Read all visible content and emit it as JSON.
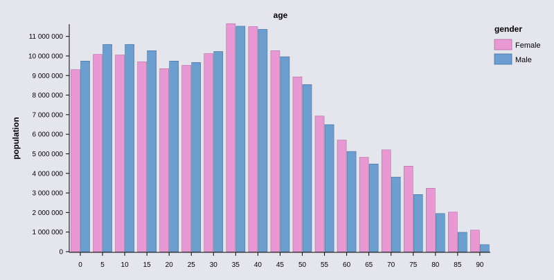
{
  "chart_data": {
    "type": "bar",
    "title": "age",
    "xlabel": "",
    "ylabel": "population",
    "categories": [
      "0",
      "5",
      "10",
      "15",
      "20",
      "25",
      "30",
      "35",
      "40",
      "45",
      "50",
      "55",
      "60",
      "65",
      "70",
      "75",
      "80",
      "85",
      "90"
    ],
    "series": [
      {
        "name": "Female",
        "color": "#e899d3",
        "values": [
          9300000,
          10080000,
          10050000,
          9700000,
          9350000,
          9520000,
          10120000,
          11650000,
          11500000,
          10270000,
          8930000,
          6930000,
          5700000,
          4820000,
          5200000,
          4370000,
          3240000,
          2020000,
          1100000
        ]
      },
      {
        "name": "Male",
        "color": "#6c9ecf",
        "values": [
          9740000,
          10590000,
          10590000,
          10270000,
          9740000,
          9670000,
          10230000,
          11520000,
          11360000,
          9960000,
          8540000,
          6490000,
          5120000,
          4480000,
          3810000,
          2920000,
          1950000,
          990000,
          360000
        ]
      }
    ],
    "ylim": [
      0,
      11800000
    ],
    "yticks": [
      "0",
      "1 000 000",
      "2 000 000",
      "3 000 000",
      "4 000 000",
      "5 000 000",
      "6 000 000",
      "7 000 000",
      "8 000 000",
      "9 000 000",
      "10 000 000",
      "11 000 000"
    ],
    "ytick_values": [
      0,
      1000000,
      2000000,
      3000000,
      4000000,
      5000000,
      6000000,
      7000000,
      8000000,
      9000000,
      10000000,
      11000000
    ],
    "legend": {
      "title": "gender",
      "position": "top-right"
    },
    "grid": false
  }
}
